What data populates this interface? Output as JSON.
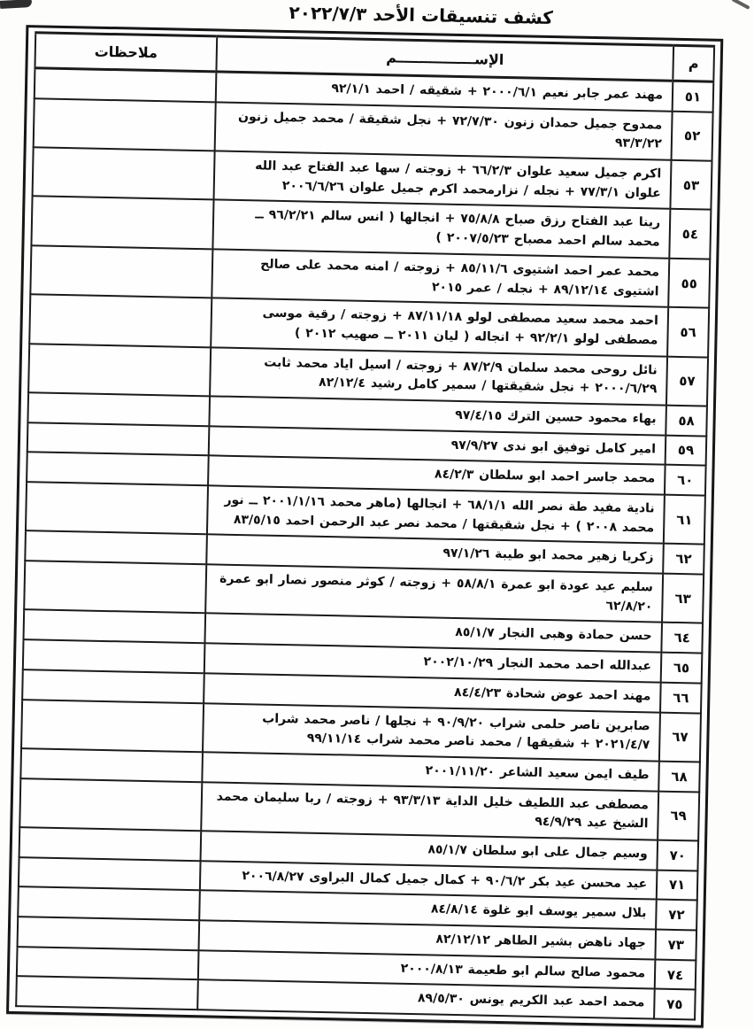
{
  "page": {
    "title": "كشف تنسيقات الأحد ٢٠٢٢/٧/٣"
  },
  "table": {
    "headers": {
      "number": "م",
      "name": "الإســــــــــــــــم",
      "notes": "ملاحظات"
    },
    "rows": [
      {
        "num": "٥١",
        "name": "مهند عمر جابر نعيم ٢٠٠٠/٦/١ + شقيقه / احمد ٩٢/١/١",
        "notes": ""
      },
      {
        "num": "٥٢",
        "name": "ممدوح جميل حمدان زنون ٧٢/٧/٣٠ + نجل شقيقة / محمد جميل زنون ٩٣/٣/٢٢",
        "notes": ""
      },
      {
        "num": "٥٣",
        "name": "اكرم جميل سعيد علوان ٦٦/٢/٣ + زوجته / سها عبد الفتاح عبد الله علوان ٧٧/٣/١ + نجله / نزارمحمد اكرم جميل علوان ٢٠٠٦/٦/٢٦",
        "notes": ""
      },
      {
        "num": "٥٤",
        "name": "رينا عبد الفتاح رزق صباح ٧٥/٨/٨ + انجالها ( انس سالم ٩٦/٢/٢١ ــ محمد سالم احمد مصباح ٢٠٠٧/٥/٢٣ )",
        "notes": ""
      },
      {
        "num": "٥٥",
        "name": "محمد عمر احمد اشتيوى ٨٥/١١/٦ + زوجته / امنه محمد على صالح اشتيوى ٨٩/١٢/١٤ + نجله / عمر ٢٠١٥",
        "notes": ""
      },
      {
        "num": "٥٦",
        "name": "احمد محمد سعيد مصطفى لولو ٨٧/١١/١٨ + زوجته / رقية موسى مصطفى لولو ٩٢/٢/١ + انجاله ( ليان ٢٠١١ ــ صهيب ٢٠١٢ )",
        "notes": ""
      },
      {
        "num": "٥٧",
        "name": "نائل روحى محمد سلمان ٨٧/٢/٩ + زوجته / اسيل اياد محمد ثابت ٢٠٠٠/٦/٢٩ + نجل شقيقتها / سمير كامل رشيد ٨٢/١٢/٤",
        "notes": ""
      },
      {
        "num": "٥٨",
        "name": "بهاء محمود حسين الترك ٩٧/٤/١٥",
        "notes": ""
      },
      {
        "num": "٥٩",
        "name": "امير كامل توفيق ابو ندى ٩٧/٩/٢٧",
        "notes": ""
      },
      {
        "num": "٦٠",
        "name": "محمد جاسر احمد ابو سلطان ٨٤/٢/٣",
        "notes": ""
      },
      {
        "num": "٦١",
        "name": "نادية مفيد طة نصر الله ٦٨/١/١ + انجالها (ماهر محمد ٢٠٠١/١/١٦ ــ نور محمد ٢٠٠٨ ) + نجل شقيقتها / محمد نصر عبد الرحمن احمد ٨٣/٥/١٥",
        "notes": ""
      },
      {
        "num": "٦٢",
        "name": "زكريا زهير محمد ابو طيبة ٩٧/١/٢٦",
        "notes": ""
      },
      {
        "num": "٦٣",
        "name": "سليم عيد عودة ابو عمرة ٥٨/٨/١ + زوجته / كوثر منصور نصار ابو عمرة ٦٢/٨/٢٠",
        "notes": ""
      },
      {
        "num": "٦٤",
        "name": "حسن حمادة وهبى النجار ٨٥/١/٧",
        "notes": ""
      },
      {
        "num": "٦٥",
        "name": "عبدالله احمد محمد النجار ٢٠٠٢/١٠/٢٩",
        "notes": ""
      },
      {
        "num": "٦٦",
        "name": "مهند احمد عوض شحادة ٨٤/٤/٢٣",
        "notes": ""
      },
      {
        "num": "٦٧",
        "name": "صابرين ناصر حلمى شراب ٩٠/٩/٢٠ + نجلها / ناصر محمد شراب ٢٠٢١/٤/٧ + شقيقها / محمد ناصر محمد شراب ٩٩/١١/١٤",
        "notes": ""
      },
      {
        "num": "٦٨",
        "name": "طيف ايمن سعيد الشاعر ٢٠٠١/١١/٢٠",
        "notes": ""
      },
      {
        "num": "٦٩",
        "name": "مصطفى عبد اللطيف خليل الداية ٩٣/٣/١٣ + زوجته / ربا سليمان محمد الشيخ عيد ٩٤/٩/٢٩",
        "notes": ""
      },
      {
        "num": "٧٠",
        "name": "وسيم جمال على ابو سلطان ٨٥/١/٧",
        "notes": ""
      },
      {
        "num": "٧١",
        "name": "عيد محسن عيد بكر ٩٠/٦/٢ + كمال جميل كمال البراوى ٢٠٠٦/٨/٢٧",
        "notes": ""
      },
      {
        "num": "٧٢",
        "name": "بلال سمير يوسف ابو غلوة ٨٤/٨/١٤",
        "notes": ""
      },
      {
        "num": "٧٣",
        "name": "جهاد ناهض بشير الطاهر ٨٢/١٢/١٢",
        "notes": ""
      },
      {
        "num": "٧٤",
        "name": "محمود صالح سالم ابو طعيمة ٢٠٠٠/٨/١٣",
        "notes": ""
      },
      {
        "num": "٧٥",
        "name": "محمد احمد عبد الكريم يونس ٨٩/٥/٣٠",
        "notes": ""
      }
    ]
  }
}
